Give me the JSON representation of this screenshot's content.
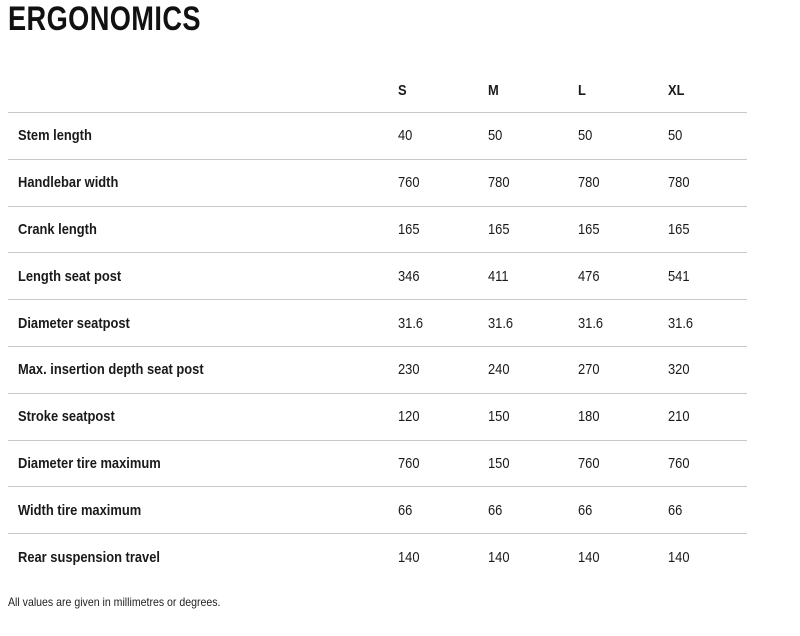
{
  "title": "ERGONOMICS",
  "table": {
    "size_headers": [
      "S",
      "M",
      "L",
      "XL"
    ],
    "rows": [
      {
        "label": "Stem length",
        "values": [
          "40",
          "50",
          "50",
          "50"
        ]
      },
      {
        "label": "Handlebar width",
        "values": [
          "760",
          "780",
          "780",
          "780"
        ]
      },
      {
        "label": "Crank length",
        "values": [
          "165",
          "165",
          "165",
          "165"
        ]
      },
      {
        "label": "Length seat post",
        "values": [
          "346",
          "411",
          "476",
          "541"
        ]
      },
      {
        "label": "Diameter seatpost",
        "values": [
          "31.6",
          "31.6",
          "31.6",
          "31.6"
        ]
      },
      {
        "label": "Max. insertion depth seat post",
        "values": [
          "230",
          "240",
          "270",
          "320"
        ]
      },
      {
        "label": "Stroke seatpost",
        "values": [
          "120",
          "150",
          "180",
          "210"
        ]
      },
      {
        "label": "Diameter tire maximum",
        "values": [
          "760",
          "150",
          "760",
          "760"
        ]
      },
      {
        "label": "Width tire maximum",
        "values": [
          "66",
          "66",
          "66",
          "66"
        ]
      },
      {
        "label": "Rear suspension travel",
        "values": [
          "140",
          "140",
          "140",
          "140"
        ]
      }
    ]
  },
  "footnote": "All values are given in millimetres or degrees.",
  "colors": {
    "background": "#ffffff",
    "text": "#1a1a1a",
    "divider": "#c8c8c8"
  }
}
